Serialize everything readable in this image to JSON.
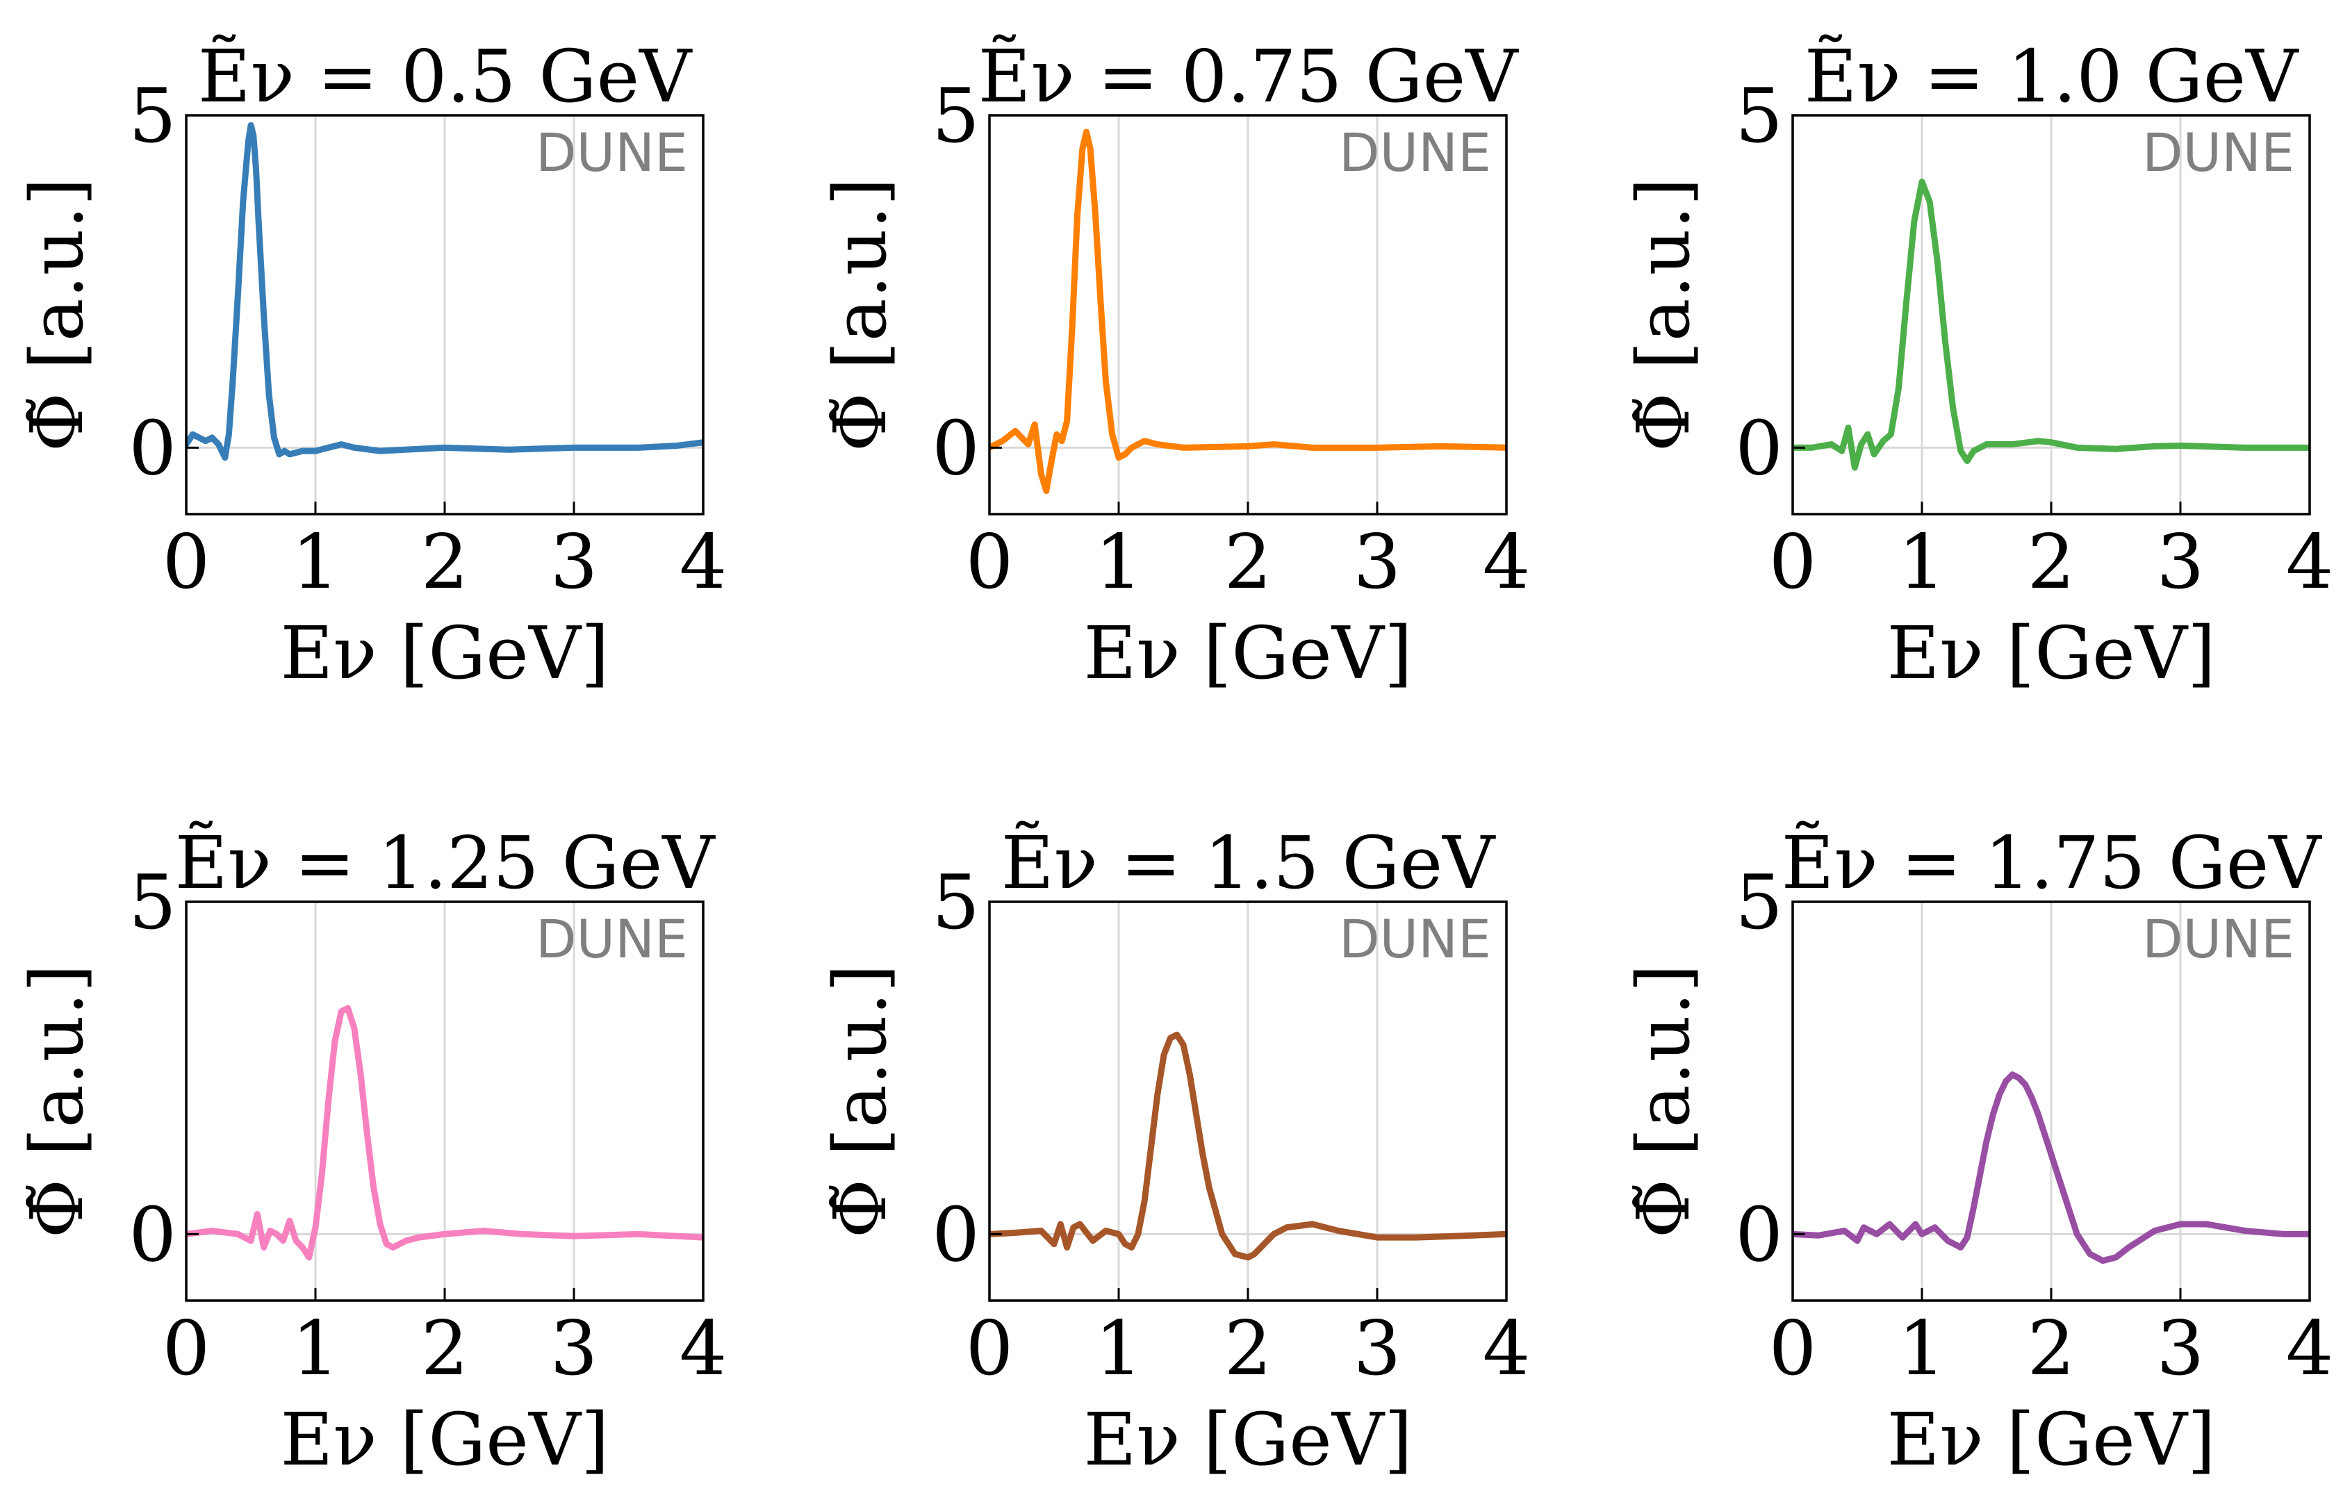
{
  "figure": {
    "watermark_text": "DUNE"
  },
  "chart_data": [
    {
      "type": "line",
      "title": "Ẽν = 0.5 GeV",
      "xlabel": "Eν [GeV]",
      "ylabel": "Φ̃ [a.u.]",
      "xlim": [
        0,
        4
      ],
      "ylim": [
        -1,
        5
      ],
      "xticks": [
        0,
        1,
        2,
        3,
        4
      ],
      "yticks": [
        0,
        5
      ],
      "grid": "vertical",
      "color": "#377eb8",
      "series": [
        {
          "x": [
            0,
            0.05,
            0.1,
            0.15,
            0.2,
            0.25,
            0.3,
            0.33,
            0.36,
            0.4,
            0.44,
            0.48,
            0.5,
            0.52,
            0.54,
            0.56,
            0.6,
            0.64,
            0.68,
            0.72,
            0.76,
            0.8,
            0.9,
            1.0,
            1.1,
            1.2,
            1.3,
            1.5,
            2.0,
            2.5,
            3.0,
            3.5,
            3.8,
            4.0
          ],
          "y": [
            0.05,
            0.2,
            0.15,
            0.1,
            0.15,
            0.05,
            -0.15,
            0.2,
            1.0,
            2.3,
            3.7,
            4.6,
            4.85,
            4.7,
            4.2,
            3.4,
            2.0,
            0.8,
            0.15,
            -0.1,
            -0.05,
            -0.1,
            -0.05,
            -0.05,
            0.0,
            0.05,
            0.0,
            -0.05,
            0.0,
            -0.03,
            0.0,
            0.0,
            0.03,
            0.08
          ]
        }
      ]
    },
    {
      "type": "line",
      "title": "Ẽν = 0.75 GeV",
      "xlabel": "Eν [GeV]",
      "ylabel": "Φ̃ [a.u.]",
      "xlim": [
        0,
        4
      ],
      "ylim": [
        -1,
        5
      ],
      "xticks": [
        0,
        1,
        2,
        3,
        4
      ],
      "yticks": [
        0,
        5
      ],
      "grid": "vertical",
      "color": "#ff7f00",
      "series": [
        {
          "x": [
            0,
            0.1,
            0.2,
            0.3,
            0.35,
            0.4,
            0.44,
            0.48,
            0.52,
            0.56,
            0.6,
            0.64,
            0.68,
            0.72,
            0.75,
            0.78,
            0.82,
            0.86,
            0.9,
            0.95,
            1.0,
            1.05,
            1.1,
            1.2,
            1.3,
            1.5,
            2.0,
            2.2,
            2.5,
            3.0,
            3.5,
            4.0
          ],
          "y": [
            0.0,
            0.1,
            0.25,
            0.05,
            0.35,
            -0.4,
            -0.65,
            -0.2,
            0.2,
            0.1,
            0.4,
            1.8,
            3.5,
            4.5,
            4.75,
            4.5,
            3.5,
            2.2,
            1.0,
            0.2,
            -0.15,
            -0.1,
            0.0,
            0.1,
            0.05,
            0.0,
            0.02,
            0.05,
            0.0,
            0.0,
            0.02,
            0.0
          ]
        }
      ]
    },
    {
      "type": "line",
      "title": "Ẽν = 1.0 GeV",
      "xlabel": "Eν [GeV]",
      "ylabel": "Φ̃ [a.u.]",
      "xlim": [
        0,
        4
      ],
      "ylim": [
        -1,
        5
      ],
      "xticks": [
        0,
        1,
        2,
        3,
        4
      ],
      "yticks": [
        0,
        5
      ],
      "grid": "vertical",
      "color": "#4daf4a",
      "series": [
        {
          "x": [
            0,
            0.15,
            0.3,
            0.38,
            0.43,
            0.48,
            0.53,
            0.58,
            0.63,
            0.7,
            0.76,
            0.82,
            0.88,
            0.94,
            1.0,
            1.06,
            1.12,
            1.18,
            1.24,
            1.3,
            1.35,
            1.4,
            1.5,
            1.7,
            1.9,
            2.0,
            2.2,
            2.5,
            2.8,
            3.0,
            3.5,
            4.0
          ],
          "y": [
            0.0,
            0.0,
            0.05,
            -0.05,
            0.3,
            -0.3,
            0.05,
            0.2,
            -0.1,
            0.1,
            0.2,
            0.9,
            2.2,
            3.4,
            4.0,
            3.7,
            2.8,
            1.6,
            0.6,
            -0.05,
            -0.2,
            -0.05,
            0.05,
            0.05,
            0.1,
            0.08,
            0.0,
            -0.02,
            0.02,
            0.03,
            0.0,
            0.0
          ]
        }
      ]
    },
    {
      "type": "line",
      "title": "Ẽν = 1.25 GeV",
      "xlabel": "Eν [GeV]",
      "ylabel": "Φ̃ [a.u.]",
      "xlim": [
        0,
        4
      ],
      "ylim": [
        -1,
        5
      ],
      "xticks": [
        0,
        1,
        2,
        3,
        4
      ],
      "yticks": [
        0,
        5
      ],
      "grid": "vertical",
      "color": "#f781bf",
      "series": [
        {
          "x": [
            0,
            0.2,
            0.4,
            0.5,
            0.55,
            0.6,
            0.65,
            0.7,
            0.75,
            0.8,
            0.85,
            0.9,
            0.95,
            1.0,
            1.05,
            1.1,
            1.15,
            1.2,
            1.25,
            1.3,
            1.35,
            1.4,
            1.45,
            1.5,
            1.55,
            1.6,
            1.7,
            1.8,
            2.0,
            2.3,
            2.6,
            3.0,
            3.5,
            4.0
          ],
          "y": [
            0.0,
            0.05,
            0.0,
            -0.1,
            0.3,
            -0.2,
            0.05,
            0.0,
            -0.1,
            0.2,
            -0.1,
            -0.2,
            -0.35,
            0.1,
            0.9,
            2.0,
            2.9,
            3.35,
            3.4,
            3.1,
            2.4,
            1.5,
            0.7,
            0.15,
            -0.15,
            -0.2,
            -0.1,
            -0.05,
            0.0,
            0.05,
            0.0,
            -0.03,
            0.0,
            -0.05
          ]
        }
      ]
    },
    {
      "type": "line",
      "title": "Ẽν = 1.5 GeV",
      "xlabel": "Eν [GeV]",
      "ylabel": "Φ̃ [a.u.]",
      "xlim": [
        0,
        4
      ],
      "ylim": [
        -1,
        5
      ],
      "xticks": [
        0,
        1,
        2,
        3,
        4
      ],
      "yticks": [
        0,
        5
      ],
      "grid": "vertical",
      "color": "#a65628",
      "series": [
        {
          "x": [
            0,
            0.2,
            0.4,
            0.5,
            0.55,
            0.6,
            0.65,
            0.7,
            0.8,
            0.9,
            1.0,
            1.05,
            1.1,
            1.15,
            1.2,
            1.25,
            1.3,
            1.35,
            1.4,
            1.45,
            1.5,
            1.55,
            1.6,
            1.65,
            1.7,
            1.8,
            1.9,
            2.0,
            2.05,
            2.1,
            2.2,
            2.3,
            2.5,
            2.7,
            3.0,
            3.3,
            3.6,
            4.0
          ],
          "y": [
            0.0,
            0.02,
            0.05,
            -0.15,
            0.15,
            -0.2,
            0.1,
            0.15,
            -0.1,
            0.05,
            0.0,
            -0.15,
            -0.2,
            0.0,
            0.5,
            1.3,
            2.1,
            2.7,
            2.95,
            3.0,
            2.85,
            2.4,
            1.8,
            1.2,
            0.7,
            0.0,
            -0.3,
            -0.35,
            -0.3,
            -0.2,
            0.0,
            0.1,
            0.15,
            0.05,
            -0.05,
            -0.05,
            -0.03,
            0.0
          ]
        }
      ]
    },
    {
      "type": "line",
      "title": "Ẽν = 1.75 GeV",
      "xlabel": "Eν [GeV]",
      "ylabel": "Φ̃ [a.u.]",
      "xlim": [
        0,
        4
      ],
      "ylim": [
        -1,
        5
      ],
      "xticks": [
        0,
        1,
        2,
        3,
        4
      ],
      "yticks": [
        0,
        5
      ],
      "grid": "vertical",
      "color": "#984ea3",
      "series": [
        {
          "x": [
            0,
            0.2,
            0.4,
            0.5,
            0.55,
            0.65,
            0.75,
            0.85,
            0.95,
            1.0,
            1.1,
            1.2,
            1.3,
            1.35,
            1.4,
            1.45,
            1.5,
            1.55,
            1.6,
            1.65,
            1.7,
            1.75,
            1.8,
            1.85,
            1.9,
            2.0,
            2.1,
            2.2,
            2.3,
            2.4,
            2.5,
            2.6,
            2.8,
            3.0,
            3.2,
            3.5,
            3.8,
            4.0
          ],
          "y": [
            0.0,
            -0.02,
            0.05,
            -0.1,
            0.1,
            0.0,
            0.15,
            -0.05,
            0.15,
            0.0,
            0.1,
            -0.1,
            -0.2,
            -0.05,
            0.4,
            0.9,
            1.4,
            1.8,
            2.1,
            2.3,
            2.4,
            2.35,
            2.25,
            2.05,
            1.8,
            1.2,
            0.6,
            0.0,
            -0.3,
            -0.4,
            -0.35,
            -0.2,
            0.05,
            0.15,
            0.15,
            0.05,
            0.0,
            0.0
          ]
        }
      ]
    }
  ]
}
